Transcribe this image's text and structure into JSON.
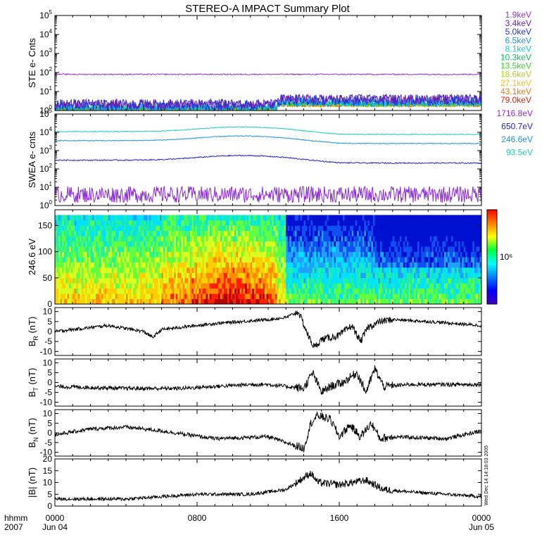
{
  "title": "STEREO-A IMPACT Summary Plot",
  "side_text": "Wed Dec 14 14:18:03 2005",
  "time_axis": {
    "header_top": "hhmm",
    "header_bottom": "2007",
    "ticks": [
      {
        "hour": 0,
        "label": "0000",
        "sub": "Jun 04"
      },
      {
        "hour": 8,
        "label": "0800",
        "sub": ""
      },
      {
        "hour": 16,
        "label": "1600",
        "sub": ""
      },
      {
        "hour": 24,
        "label": "0000",
        "sub": "Jun 05"
      }
    ],
    "range_hours": [
      0,
      24
    ]
  },
  "chart_data": [
    {
      "type": "line",
      "panel": "ste",
      "ylabel": "STE e- Cnts",
      "yscale": "log",
      "ylim_exp": [
        0,
        5
      ],
      "series": [
        {
          "name": "1.9keV",
          "color": "#9b30d0",
          "level": 80,
          "noise": 0.03
        },
        {
          "name": "3.4keV",
          "color": "#6a1fb0",
          "level": 2.2,
          "noise": 0.25
        },
        {
          "name": "5.0keV",
          "color": "#1d2fd8",
          "level": 2.0,
          "noise": 0.3
        },
        {
          "name": "6.5keV",
          "color": "#1e8ee8",
          "level": 1.6,
          "noise": 0.25
        },
        {
          "name": "8.1keV",
          "color": "#15c8d8",
          "level": 1.4,
          "noise": 0.2
        },
        {
          "name": "10.3keV",
          "color": "#13c060",
          "level": 1.3,
          "noise": 0.15
        },
        {
          "name": "13.5keV",
          "color": "#3ad12a",
          "level": 1.2,
          "noise": 0.12
        },
        {
          "name": "18.6keV",
          "color": "#b0d020",
          "level": 1.1,
          "noise": 0.1
        },
        {
          "name": "27.1keV",
          "color": "#f0c018",
          "level": 1.1,
          "noise": 0.1
        },
        {
          "name": "43.1keV",
          "color": "#f07818",
          "level": 1.1,
          "noise": 0.1
        },
        {
          "name": "79.0keV",
          "color": "#e02010",
          "level": 1.1,
          "noise": 0.1
        }
      ]
    },
    {
      "type": "line",
      "panel": "swea",
      "ylabel": "SWEA e- cnts",
      "yscale": "log",
      "ylim_exp": [
        0,
        5
      ],
      "series": [
        {
          "name": "1716.8eV",
          "color": "#8a28d8",
          "level": 4,
          "noise": 0.45
        },
        {
          "name": "650.7eV",
          "color": "#2020c8",
          "level": 300,
          "noise": 0.03
        },
        {
          "name": "246.6eV",
          "color": "#1e90e0",
          "level": 3500,
          "noise": 0.02
        },
        {
          "name": "93.5eV",
          "color": "#20c8c0",
          "level": 11000,
          "noise": 0.02
        }
      ]
    },
    {
      "type": "heatmap",
      "panel": "pad",
      "ylabel": "246.6 eV",
      "ylim": [
        0,
        180
      ],
      "yticks": [
        0,
        50,
        100,
        150
      ],
      "colorbar_label": "10⁶",
      "colorbar_colors": [
        "#ff0000",
        "#ff8000",
        "#ffff00",
        "#00ff40",
        "#00ffff",
        "#0080ff",
        "#0000ff",
        "#4000c0"
      ]
    },
    {
      "type": "line",
      "panel": "br",
      "ylabel": "B",
      "ylabel_sub": "R",
      "ylabel_unit": " (nT)",
      "ylim": [
        -12,
        12
      ],
      "yticks": [
        -10,
        -5,
        0,
        5,
        10
      ],
      "key_points": [
        [
          0,
          0
        ],
        [
          1,
          1
        ],
        [
          3,
          3
        ],
        [
          5,
          0
        ],
        [
          5.5,
          -3
        ],
        [
          6,
          1
        ],
        [
          9,
          4
        ],
        [
          12,
          6
        ],
        [
          13,
          7
        ],
        [
          13.7,
          10
        ],
        [
          14.3,
          -3
        ],
        [
          14.6,
          -8
        ],
        [
          15,
          -4
        ],
        [
          16,
          -2
        ],
        [
          16.7,
          3
        ],
        [
          17.2,
          -5
        ],
        [
          17.6,
          2
        ],
        [
          18.3,
          5
        ],
        [
          19,
          6
        ],
        [
          21,
          5
        ],
        [
          24,
          3
        ]
      ],
      "noise": 0.8
    },
    {
      "type": "line",
      "panel": "bt",
      "ylabel": "B",
      "ylabel_sub": "T",
      "ylabel_unit": " (nT)",
      "ylim": [
        -12,
        12
      ],
      "yticks": [
        -10,
        -5,
        0,
        5,
        10
      ],
      "key_points": [
        [
          0,
          -2
        ],
        [
          4,
          -3
        ],
        [
          7,
          -3
        ],
        [
          9,
          -2
        ],
        [
          11,
          -1
        ],
        [
          12,
          -1
        ],
        [
          13,
          -2
        ],
        [
          14,
          -3
        ],
        [
          14.5,
          5
        ],
        [
          15,
          -5
        ],
        [
          15.5,
          -2
        ],
        [
          16.2,
          0
        ],
        [
          17,
          5
        ],
        [
          17.5,
          -5
        ],
        [
          18,
          7
        ],
        [
          18.5,
          -2
        ],
        [
          20,
          -1
        ],
        [
          24,
          -1
        ]
      ],
      "noise": 1.0
    },
    {
      "type": "line",
      "panel": "bn",
      "ylabel": "B",
      "ylabel_sub": "N",
      "ylabel_unit": " (nT)",
      "ylim": [
        -12,
        12
      ],
      "yticks": [
        -10,
        -5,
        0,
        5,
        10
      ],
      "key_points": [
        [
          0,
          -1
        ],
        [
          2,
          2
        ],
        [
          4,
          3
        ],
        [
          6,
          1
        ],
        [
          9,
          -3
        ],
        [
          12,
          -2
        ],
        [
          13,
          -5
        ],
        [
          14,
          -8
        ],
        [
          14.4,
          5
        ],
        [
          14.8,
          9
        ],
        [
          15.5,
          7
        ],
        [
          16,
          -2
        ],
        [
          16.6,
          4
        ],
        [
          17.2,
          -2
        ],
        [
          17.8,
          5
        ],
        [
          18.3,
          -3
        ],
        [
          19,
          -2
        ],
        [
          22,
          -3
        ],
        [
          24,
          1
        ]
      ],
      "noise": 1.0
    },
    {
      "type": "line",
      "panel": "bmag",
      "ylabel": "|B| (nT)",
      "ylim": [
        0,
        20
      ],
      "yticks": [
        0,
        5,
        10,
        15,
        20
      ],
      "key_points": [
        [
          0,
          3
        ],
        [
          4,
          3
        ],
        [
          8,
          5
        ],
        [
          11,
          5
        ],
        [
          13,
          7
        ],
        [
          13.6,
          10
        ],
        [
          14.4,
          14
        ],
        [
          14.8,
          10
        ],
        [
          16,
          9
        ],
        [
          17.5,
          11
        ],
        [
          18.5,
          7
        ],
        [
          20,
          6
        ],
        [
          24,
          4
        ]
      ],
      "noise": 0.7
    }
  ]
}
